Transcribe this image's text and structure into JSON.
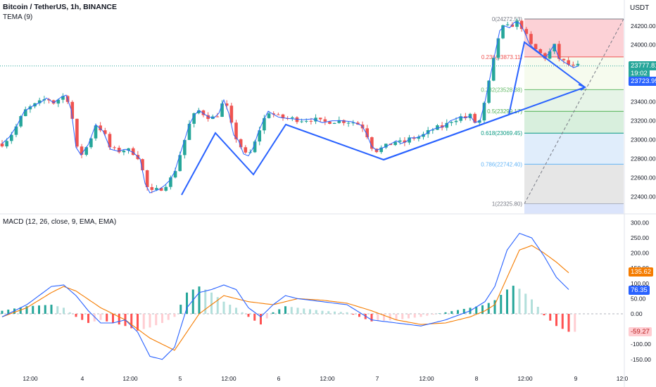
{
  "header": {
    "symbol": "Bitcoin / TetherUS, 1h, BINANCE",
    "indicator": "TEMA (9)",
    "currency": "USDT",
    "macd_label": "MACD (12, 26, close, 9, EMA, EMA)"
  },
  "colors": {
    "up": "#26a69a",
    "down": "#ef5350",
    "tema": "#2962ff",
    "drawing": "#2962ff",
    "macd": "#2962ff",
    "signal": "#f57c00",
    "hist_up_strong": "#26a69a",
    "hist_up_weak": "#b2dfdb",
    "hist_down_strong": "#ff5252",
    "hist_down_weak": "#ffcdd2",
    "fib_0_0236": "#fcd1d6",
    "fib_0236_0382": "#f6fbee",
    "fib_0382_05": "#e6f4e7",
    "fib_05_0618": "#d8efdd",
    "fib_0618_0786": "#e0edfb",
    "fib_0786_1": "#e6e6e6"
  },
  "price_axis": {
    "ticks": [
      "24200.00",
      "24000.00",
      "23800.00",
      "23600.00",
      "23400.00",
      "23200.00",
      "23000.00",
      "22800.00",
      "22600.00",
      "22400.00"
    ],
    "last_price": "23777.81",
    "countdown": "19:02",
    "tema_value": "23723.95"
  },
  "macd_axis": {
    "ticks": [
      "300.00",
      "250.00",
      "200.00",
      "150.00",
      "100.00",
      "50.00",
      "0.00",
      "-100.00",
      "-150.00"
    ],
    "signal_value": "135.62",
    "macd_value": "76.35",
    "hist_value": "-59.27"
  },
  "time_axis": [
    "12:00",
    "4",
    "12:00",
    "5",
    "12:00",
    "6",
    "12:00",
    "7",
    "12:00",
    "8",
    "12:00",
    "9",
    "12:0"
  ],
  "fib_levels": [
    {
      "ratio": "0",
      "price": "24272.53",
      "label": "0(24272.53)"
    },
    {
      "ratio": "0.236",
      "price": "23873.11",
      "label": "0.236(23873.11)"
    },
    {
      "ratio": "0.382",
      "price": "23528.38",
      "label": "0.382(23528.38)"
    },
    {
      "ratio": "0.5",
      "price": "23299.17",
      "label": "0.5(23299.17)"
    },
    {
      "ratio": "0.618",
      "price": "23069.45",
      "label": "0.618(23069.45)"
    },
    {
      "ratio": "0.786",
      "price": "22742.40",
      "label": "0.786(22742.40)"
    },
    {
      "ratio": "1",
      "price": "22325.80",
      "label": "1(22325.80)"
    }
  ],
  "chart_data": {
    "type": "candlestick",
    "title": "Bitcoin / TetherUS, 1h, BINANCE",
    "price_range": [
      22280,
      24380
    ],
    "macd_range": [
      -165,
      310
    ],
    "time_labels": [
      "12:00",
      "4",
      "12:00",
      "5",
      "12:00",
      "6",
      "12:00",
      "7",
      "12:00",
      "8",
      "12:00",
      "9",
      "12:0"
    ],
    "price_path": [
      [
        0,
        22960
      ],
      [
        3,
        23030
      ],
      [
        6,
        23150
      ],
      [
        9,
        23300
      ],
      [
        12,
        23350
      ],
      [
        16,
        23400
      ],
      [
        18,
        23440
      ],
      [
        21,
        23390
      ],
      [
        24,
        23450
      ],
      [
        26,
        23470
      ],
      [
        28,
        23320
      ],
      [
        30,
        22920
      ],
      [
        32,
        22840
      ],
      [
        35,
        22950
      ],
      [
        38,
        23160
      ],
      [
        41,
        23090
      ],
      [
        44,
        22900
      ],
      [
        47,
        22880
      ],
      [
        50,
        22900
      ],
      [
        53,
        22870
      ],
      [
        56,
        22800
      ],
      [
        58,
        22540
      ],
      [
        60,
        22440
      ],
      [
        62,
        22460
      ],
      [
        64,
        22480
      ],
      [
        66,
        22520
      ],
      [
        68,
        22570
      ],
      [
        70,
        22660
      ],
      [
        72,
        22830
      ],
      [
        74,
        22990
      ],
      [
        76,
        23160
      ],
      [
        78,
        23260
      ],
      [
        80,
        23310
      ],
      [
        82,
        23270
      ],
      [
        84,
        23240
      ],
      [
        86,
        23230
      ],
      [
        88,
        23280
      ],
      [
        90,
        23420
      ],
      [
        92,
        23280
      ],
      [
        94,
        23050
      ],
      [
        96,
        22990
      ],
      [
        98,
        22850
      ],
      [
        100,
        22830
      ],
      [
        102,
        22920
      ],
      [
        104,
        23080
      ],
      [
        106,
        23200
      ],
      [
        108,
        23300
      ],
      [
        110,
        23270
      ],
      [
        112,
        23240
      ],
      [
        114,
        23230
      ],
      [
        118,
        23220
      ],
      [
        122,
        23210
      ],
      [
        126,
        23220
      ],
      [
        130,
        23180
      ],
      [
        134,
        23200
      ],
      [
        138,
        23200
      ],
      [
        142,
        23190
      ],
      [
        146,
        23150
      ],
      [
        148,
        23060
      ],
      [
        150,
        22930
      ],
      [
        152,
        22890
      ],
      [
        154,
        22910
      ],
      [
        156,
        22930
      ],
      [
        158,
        22960
      ],
      [
        160,
        22990
      ],
      [
        162,
        22960
      ],
      [
        164,
        22980
      ],
      [
        166,
        23020
      ],
      [
        168,
        23020
      ],
      [
        170,
        23040
      ],
      [
        172,
        23060
      ],
      [
        174,
        23100
      ],
      [
        176,
        23120
      ],
      [
        178,
        23130
      ],
      [
        180,
        23150
      ],
      [
        182,
        23200
      ],
      [
        184,
        23220
      ],
      [
        186,
        23240
      ],
      [
        188,
        23230
      ],
      [
        190,
        23250
      ],
      [
        192,
        23180
      ],
      [
        194,
        23200
      ],
      [
        196,
        23400
      ],
      [
        198,
        23650
      ],
      [
        200,
        23900
      ],
      [
        202,
        24150
      ],
      [
        204,
        24200
      ],
      [
        206,
        24180
      ],
      [
        208,
        24240
      ],
      [
        210,
        24230
      ],
      [
        212,
        24140
      ],
      [
        214,
        24010
      ],
      [
        216,
        23960
      ],
      [
        218,
        23920
      ],
      [
        220,
        23860
      ],
      [
        222,
        23910
      ],
      [
        224,
        24000
      ],
      [
        226,
        23860
      ],
      [
        228,
        23820
      ],
      [
        230,
        23790
      ],
      [
        232,
        23760
      ],
      [
        234,
        23778
      ]
    ],
    "macd_path": [
      [
        0,
        -10
      ],
      [
        10,
        30
      ],
      [
        20,
        90
      ],
      [
        25,
        95
      ],
      [
        30,
        60
      ],
      [
        35,
        10
      ],
      [
        40,
        -30
      ],
      [
        45,
        -30
      ],
      [
        50,
        -20
      ],
      [
        55,
        -60
      ],
      [
        60,
        -140
      ],
      [
        65,
        -150
      ],
      [
        70,
        -110
      ],
      [
        75,
        20
      ],
      [
        80,
        70
      ],
      [
        85,
        80
      ],
      [
        90,
        95
      ],
      [
        95,
        80
      ],
      [
        100,
        20
      ],
      [
        105,
        -10
      ],
      [
        110,
        30
      ],
      [
        115,
        60
      ],
      [
        120,
        50
      ],
      [
        130,
        40
      ],
      [
        140,
        30
      ],
      [
        150,
        -20
      ],
      [
        160,
        -30
      ],
      [
        170,
        -40
      ],
      [
        180,
        -20
      ],
      [
        190,
        10
      ],
      [
        196,
        40
      ],
      [
        200,
        90
      ],
      [
        205,
        210
      ],
      [
        210,
        265
      ],
      [
        215,
        250
      ],
      [
        220,
        190
      ],
      [
        225,
        120
      ],
      [
        230,
        80
      ]
    ],
    "signal_path": [
      [
        0,
        -10
      ],
      [
        10,
        20
      ],
      [
        20,
        70
      ],
      [
        25,
        90
      ],
      [
        30,
        75
      ],
      [
        40,
        20
      ],
      [
        50,
        -20
      ],
      [
        60,
        -80
      ],
      [
        70,
        -120
      ],
      [
        75,
        -60
      ],
      [
        80,
        0
      ],
      [
        90,
        60
      ],
      [
        100,
        40
      ],
      [
        110,
        30
      ],
      [
        120,
        50
      ],
      [
        130,
        45
      ],
      [
        140,
        35
      ],
      [
        150,
        10
      ],
      [
        160,
        -20
      ],
      [
        170,
        -35
      ],
      [
        180,
        -30
      ],
      [
        190,
        -10
      ],
      [
        196,
        10
      ],
      [
        200,
        30
      ],
      [
        205,
        120
      ],
      [
        210,
        210
      ],
      [
        215,
        225
      ],
      [
        220,
        200
      ],
      [
        225,
        170
      ],
      [
        230,
        135
      ]
    ],
    "histogram_path": [
      [
        0,
        10
      ],
      [
        10,
        25
      ],
      [
        20,
        30
      ],
      [
        25,
        20
      ],
      [
        30,
        -10
      ],
      [
        35,
        -30
      ],
      [
        40,
        -20
      ],
      [
        45,
        -30
      ],
      [
        50,
        -40
      ],
      [
        55,
        -55
      ],
      [
        60,
        -45
      ],
      [
        65,
        -30
      ],
      [
        70,
        -10
      ],
      [
        75,
        70
      ],
      [
        80,
        90
      ],
      [
        85,
        70
      ],
      [
        90,
        40
      ],
      [
        95,
        20
      ],
      [
        100,
        -10
      ],
      [
        105,
        -35
      ],
      [
        110,
        5
      ],
      [
        115,
        25
      ],
      [
        120,
        20
      ],
      [
        130,
        10
      ],
      [
        140,
        5
      ],
      [
        150,
        -25
      ],
      [
        160,
        -20
      ],
      [
        170,
        -10
      ],
      [
        180,
        5
      ],
      [
        190,
        20
      ],
      [
        196,
        30
      ],
      [
        200,
        45
      ],
      [
        205,
        80
      ],
      [
        208,
        95
      ],
      [
        212,
        70
      ],
      [
        216,
        40
      ],
      [
        220,
        -5
      ],
      [
        225,
        -40
      ],
      [
        230,
        -59
      ]
    ],
    "series": [
      {
        "name": "TEMA (9)",
        "last": 23723.95
      },
      {
        "name": "MACD",
        "last": 76.35
      },
      {
        "name": "Signal",
        "last": 135.62
      },
      {
        "name": "Histogram",
        "last": -59.27
      }
    ]
  }
}
